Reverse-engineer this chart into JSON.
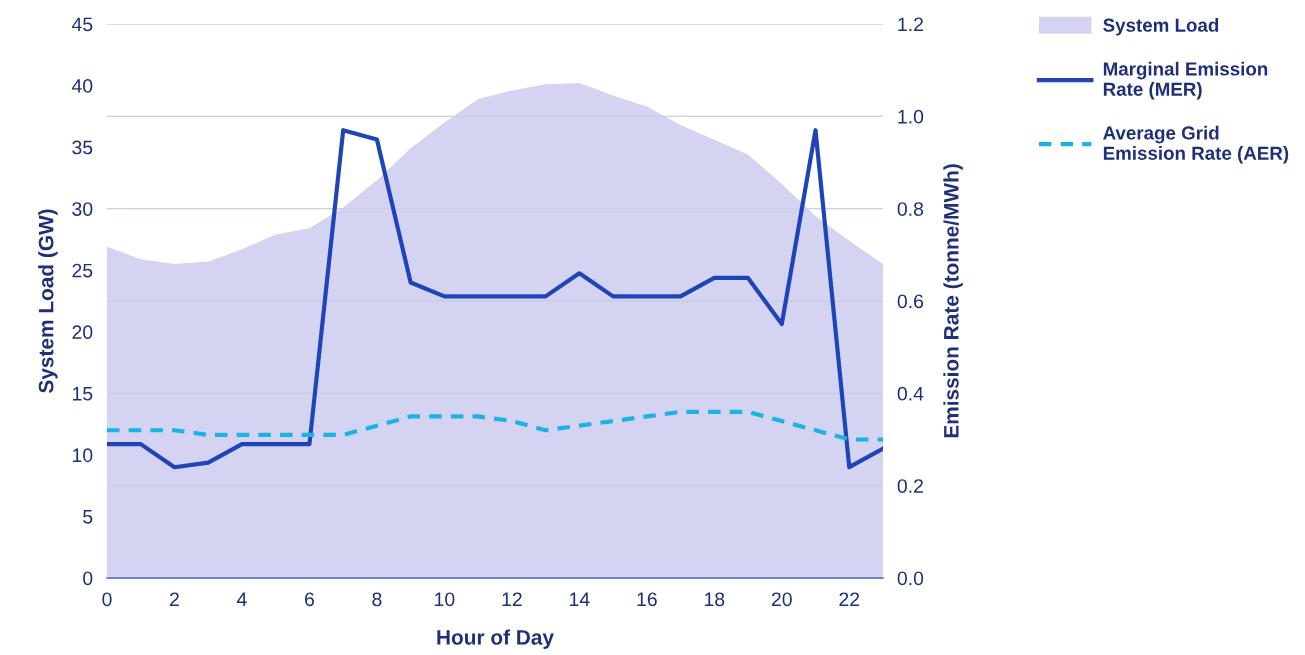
{
  "chart_data": {
    "type": "line",
    "xlabel": "Hour of Day",
    "ylabel": "System Load (GW)",
    "y2label": "Emission Rate (tonne/MWh)",
    "x": [
      0,
      1,
      2,
      3,
      4,
      5,
      6,
      7,
      8,
      9,
      10,
      11,
      12,
      13,
      14,
      15,
      16,
      17,
      18,
      19,
      20,
      21,
      22,
      23
    ],
    "series": [
      {
        "name": "System Load",
        "type": "area",
        "axis": "y",
        "color": "#d4d4f2",
        "values": [
          26.9,
          25.9,
          25.5,
          25.7,
          26.7,
          27.9,
          28.4,
          30.1,
          32.3,
          34.9,
          37.0,
          38.9,
          39.6,
          40.1,
          40.2,
          39.2,
          38.3,
          36.8,
          35.6,
          34.4,
          32.0,
          29.4,
          27.4,
          25.5
        ]
      },
      {
        "name": "Marginal Emission Rate (MER)",
        "axis": "y2",
        "color": "#1f44b8",
        "line_style": "solid",
        "values": [
          0.29,
          0.29,
          0.24,
          0.25,
          0.29,
          0.29,
          0.29,
          0.97,
          0.95,
          0.64,
          0.61,
          0.61,
          0.61,
          0.61,
          0.66,
          0.61,
          0.61,
          0.61,
          0.65,
          0.65,
          0.55,
          0.97,
          0.24,
          0.28
        ]
      },
      {
        "name": "Average Grid Emission Rate (AER)",
        "axis": "y2",
        "color": "#19b3e6",
        "line_style": "dashed",
        "values": [
          0.32,
          0.32,
          0.32,
          0.31,
          0.31,
          0.31,
          0.31,
          0.31,
          0.33,
          0.35,
          0.35,
          0.35,
          0.34,
          0.32,
          0.33,
          0.34,
          0.35,
          0.36,
          0.36,
          0.36,
          0.34,
          0.32,
          0.3,
          0.3
        ]
      }
    ],
    "xlim": [
      0,
      23
    ],
    "xticks": [
      0,
      2,
      4,
      6,
      8,
      10,
      12,
      14,
      16,
      18,
      20,
      22
    ],
    "ylim": [
      0,
      45
    ],
    "yticks": [
      0,
      5,
      10,
      15,
      20,
      25,
      30,
      35,
      40,
      45
    ],
    "y2lim": [
      0.0,
      1.2
    ],
    "y2ticks": [
      {
        "value": 0,
        "label": "0.0"
      },
      {
        "value": 0.2,
        "label": "0.2"
      },
      {
        "value": 0.4,
        "label": "0.4"
      },
      {
        "value": 0.6,
        "label": "0.6"
      },
      {
        "value": 0.8,
        "label": "0.8"
      },
      {
        "value": 1.0,
        "label": "1.0"
      },
      {
        "value": 1.2,
        "label": "1.2"
      }
    ],
    "grid": "y",
    "legend": "top right",
    "marker": "none"
  }
}
